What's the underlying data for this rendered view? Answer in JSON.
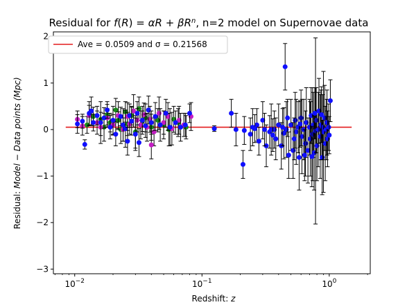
{
  "chart_data": {
    "type": "scatter",
    "title_parts": [
      {
        "text": "Residual for ",
        "italic": false
      },
      {
        "text": "f",
        "italic": true
      },
      {
        "text": "(",
        "italic": false
      },
      {
        "text": "R",
        "italic": true
      },
      {
        "text": ") = ",
        "italic": false
      },
      {
        "text": "αR",
        "italic": true
      },
      {
        "text": " + ",
        "italic": false
      },
      {
        "text": "βR",
        "italic": true
      },
      {
        "text": "n",
        "italic": true,
        "sup": true
      },
      {
        "text": ", n=2 model on Supernovae data",
        "italic": false
      }
    ],
    "xlabel_parts": [
      {
        "text": "Redshift: ",
        "italic": false
      },
      {
        "text": "z",
        "italic": true
      }
    ],
    "ylabel_parts": [
      {
        "text": "Residual: ",
        "italic": false
      },
      {
        "text": "Model",
        "italic": true
      },
      {
        "text": " − ",
        "italic": false
      },
      {
        "text": "Data points (Mpc)",
        "italic": true
      }
    ],
    "xscale": "log",
    "xlim": [
      0.0068,
      2.1
    ],
    "ylim": [
      -3.1,
      2.1
    ],
    "x_ticks": [
      {
        "value": 0.01,
        "base": "10",
        "exp": "−2"
      },
      {
        "value": 0.1,
        "base": "10",
        "exp": "−1"
      },
      {
        "value": 1,
        "base": "10",
        "exp": "0"
      }
    ],
    "y_ticks": [
      -3,
      -2,
      -1,
      0,
      1,
      2
    ],
    "grid": false,
    "legend": {
      "placement": "top-left",
      "text": "Ave = 0.0509 and σ = 0.21568",
      "line_color": "#e41a1c"
    },
    "average_line": {
      "value": 0.0509,
      "x_range": [
        0.0085,
        1.5
      ],
      "color": "#e41a1c"
    },
    "colors": {
      "blue": "#1010ff",
      "green": "#1a8a1a",
      "magenta": "#c41ec4",
      "error_bar": "#000000"
    },
    "series": [
      {
        "color_key": "green",
        "points": [
          [
            0.0125,
            0.1,
            0.18
          ],
          [
            0.014,
            0.28,
            0.2
          ],
          [
            0.016,
            0.22,
            0.15
          ],
          [
            0.017,
            0.05,
            0.3
          ],
          [
            0.018,
            0.32,
            0.22
          ],
          [
            0.019,
            0.15,
            0.2
          ],
          [
            0.021,
            0.42,
            0.25
          ],
          [
            0.022,
            0.2,
            0.18
          ],
          [
            0.023,
            0.0,
            0.3
          ],
          [
            0.025,
            0.38,
            0.22
          ],
          [
            0.026,
            0.12,
            0.25
          ],
          [
            0.028,
            0.3,
            0.2
          ],
          [
            0.03,
            -0.05,
            0.35
          ],
          [
            0.032,
            0.45,
            0.25
          ],
          [
            0.034,
            0.18,
            0.22
          ],
          [
            0.036,
            0.25,
            0.3
          ],
          [
            0.04,
            0.05,
            0.28
          ],
          [
            0.045,
            0.2,
            0.25
          ],
          [
            0.05,
            0.1,
            0.3
          ],
          [
            0.055,
            0.0,
            0.35
          ],
          [
            0.06,
            0.22,
            0.28
          ],
          [
            0.065,
            0.15,
            0.3
          ],
          [
            0.075,
            0.05,
            0.25
          ]
        ]
      },
      {
        "color_key": "magenta",
        "points": [
          [
            0.0105,
            0.22,
            0.18
          ],
          [
            0.0115,
            0.08,
            0.2
          ],
          [
            0.013,
            0.3,
            0.22
          ],
          [
            0.015,
            0.15,
            0.25
          ],
          [
            0.016,
            0.05,
            0.18
          ],
          [
            0.018,
            0.25,
            0.2
          ],
          [
            0.02,
            0.1,
            0.22
          ],
          [
            0.022,
            0.3,
            0.3
          ],
          [
            0.024,
            0.0,
            0.25
          ],
          [
            0.026,
            0.28,
            0.3
          ],
          [
            0.027,
            0.12,
            0.22
          ],
          [
            0.029,
            0.4,
            0.35
          ],
          [
            0.031,
            0.2,
            0.25
          ],
          [
            0.033,
            0.1,
            0.3
          ],
          [
            0.035,
            0.32,
            0.25
          ],
          [
            0.037,
            0.05,
            0.3
          ],
          [
            0.039,
            0.22,
            0.28
          ],
          [
            0.042,
            -0.05,
            0.3
          ],
          [
            0.046,
            0.35,
            0.35
          ],
          [
            0.05,
            0.15,
            0.25
          ],
          [
            0.054,
            0.28,
            0.3
          ],
          [
            0.058,
            0.02,
            0.35
          ],
          [
            0.066,
            0.2,
            0.3
          ],
          [
            0.072,
            0.1,
            0.25
          ],
          [
            0.082,
            0.28,
            0.3
          ],
          [
            0.04,
            -0.33,
            0.3
          ]
        ]
      },
      {
        "color_key": "blue",
        "points": [
          [
            0.0105,
            0.12,
            0.2
          ],
          [
            0.0115,
            0.18,
            0.15
          ],
          [
            0.012,
            -0.32,
            0.1
          ],
          [
            0.013,
            0.35,
            0.25
          ],
          [
            0.0135,
            0.4,
            0.3
          ],
          [
            0.014,
            0.15,
            0.18
          ],
          [
            0.015,
            0.3,
            0.2
          ],
          [
            0.016,
            0.15,
            0.45
          ],
          [
            0.017,
            0.25,
            0.22
          ],
          [
            0.018,
            0.42,
            0.18
          ],
          [
            0.019,
            0.05,
            0.25
          ],
          [
            0.02,
            0.2,
            0.3
          ],
          [
            0.021,
            -0.1,
            0.25
          ],
          [
            0.023,
            0.28,
            0.2
          ],
          [
            0.024,
            0.1,
            0.35
          ],
          [
            0.025,
            0.02,
            0.4
          ],
          [
            0.026,
            -0.25,
            0.3
          ],
          [
            0.027,
            0.3,
            0.25
          ],
          [
            0.028,
            0.18,
            0.3
          ],
          [
            0.03,
            -0.1,
            0.35
          ],
          [
            0.031,
            0.35,
            0.25
          ],
          [
            0.032,
            -0.28,
            0.3
          ],
          [
            0.034,
            0.2,
            0.3
          ],
          [
            0.036,
            0.08,
            0.25
          ],
          [
            0.038,
            0.42,
            0.3
          ],
          [
            0.04,
            0.15,
            0.25
          ],
          [
            0.043,
            0.28,
            0.3
          ],
          [
            0.047,
            0.1,
            0.35
          ],
          [
            0.052,
            0.35,
            0.3
          ],
          [
            0.056,
            0.05,
            0.4
          ],
          [
            0.062,
            0.15,
            0.25
          ],
          [
            0.068,
            0.05,
            0.3
          ],
          [
            0.074,
            0.1,
            0.25
          ],
          [
            0.08,
            0.35,
            0.2
          ],
          [
            0.125,
            0.02,
            0.06
          ],
          [
            0.17,
            0.35,
            0.3
          ],
          [
            0.185,
            0.0,
            0.35
          ],
          [
            0.21,
            -0.75,
            0.3
          ],
          [
            0.215,
            -0.02,
            0.3
          ],
          [
            0.24,
            -0.1,
            0.35
          ],
          [
            0.25,
            0.05,
            0.4
          ],
          [
            0.27,
            0.1,
            0.35
          ],
          [
            0.28,
            -0.25,
            0.3
          ],
          [
            0.3,
            0.2,
            0.4
          ],
          [
            0.32,
            -0.35,
            0.45
          ],
          [
            0.34,
            -0.05,
            0.35
          ],
          [
            0.35,
            0.0,
            0.55
          ],
          [
            0.37,
            0.0,
            0.4
          ],
          [
            0.38,
            -0.2,
            0.45
          ],
          [
            0.4,
            0.1,
            0.45
          ],
          [
            0.42,
            -0.35,
            0.5
          ],
          [
            0.44,
            -0.08,
            0.55
          ],
          [
            0.45,
            1.35,
            0.5
          ],
          [
            0.46,
            0.0,
            0.6
          ],
          [
            0.48,
            -0.55,
            0.5
          ],
          [
            0.5,
            0.1,
            0.55
          ],
          [
            0.52,
            -0.45,
            0.6
          ],
          [
            0.54,
            0.2,
            0.6
          ],
          [
            0.55,
            -0.05,
            0.7
          ],
          [
            0.57,
            0.05,
            0.55
          ],
          [
            0.58,
            -0.6,
            0.7
          ],
          [
            0.6,
            0.25,
            0.6
          ],
          [
            0.61,
            -0.15,
            0.8
          ],
          [
            0.63,
            0.0,
            0.65
          ],
          [
            0.65,
            -0.3,
            0.7
          ],
          [
            0.66,
            0.15,
            0.75
          ],
          [
            0.68,
            -0.45,
            0.7
          ],
          [
            0.7,
            0.05,
            0.6
          ],
          [
            0.71,
            -0.2,
            0.8
          ],
          [
            0.72,
            0.3,
            0.6
          ],
          [
            0.74,
            -0.1,
            1.0
          ],
          [
            0.75,
            0.1,
            0.7
          ],
          [
            0.76,
            -0.5,
            0.8
          ],
          [
            0.78,
            -0.03,
            2.0
          ],
          [
            0.79,
            0.2,
            0.7
          ],
          [
            0.8,
            -0.35,
            0.75
          ],
          [
            0.82,
            0.0,
            0.8
          ],
          [
            0.83,
            0.4,
            0.7
          ],
          [
            0.85,
            -0.15,
            0.9
          ],
          [
            0.86,
            0.1,
            0.75
          ],
          [
            0.88,
            -0.6,
            0.8
          ],
          [
            0.89,
            0.05,
            0.7
          ],
          [
            0.9,
            -0.05,
            1.3
          ],
          [
            0.92,
            0.25,
            0.7
          ],
          [
            0.93,
            -0.3,
            0.8
          ],
          [
            0.95,
            0.0,
            0.65
          ],
          [
            0.96,
            0.15,
            0.7
          ],
          [
            0.97,
            -0.2,
            0.6
          ],
          [
            0.99,
            0.05,
            0.5
          ],
          [
            1.02,
            0.62,
            0.45
          ],
          [
            1.0,
            -0.12,
            0.4
          ],
          [
            0.87,
            0.32,
            0.6
          ],
          [
            0.77,
            0.35,
            0.55
          ],
          [
            0.73,
            -0.58,
            0.65
          ],
          [
            0.64,
            -0.55,
            0.55
          ],
          [
            0.59,
            0.12,
            0.5
          ],
          [
            0.53,
            -0.2,
            0.45
          ],
          [
            0.47,
            0.25,
            0.4
          ],
          [
            0.43,
            0.05,
            0.4
          ],
          [
            0.36,
            -0.12,
            0.35
          ],
          [
            0.31,
            0.0,
            0.35
          ],
          [
            0.26,
            0.02,
            0.3
          ]
        ]
      }
    ]
  }
}
